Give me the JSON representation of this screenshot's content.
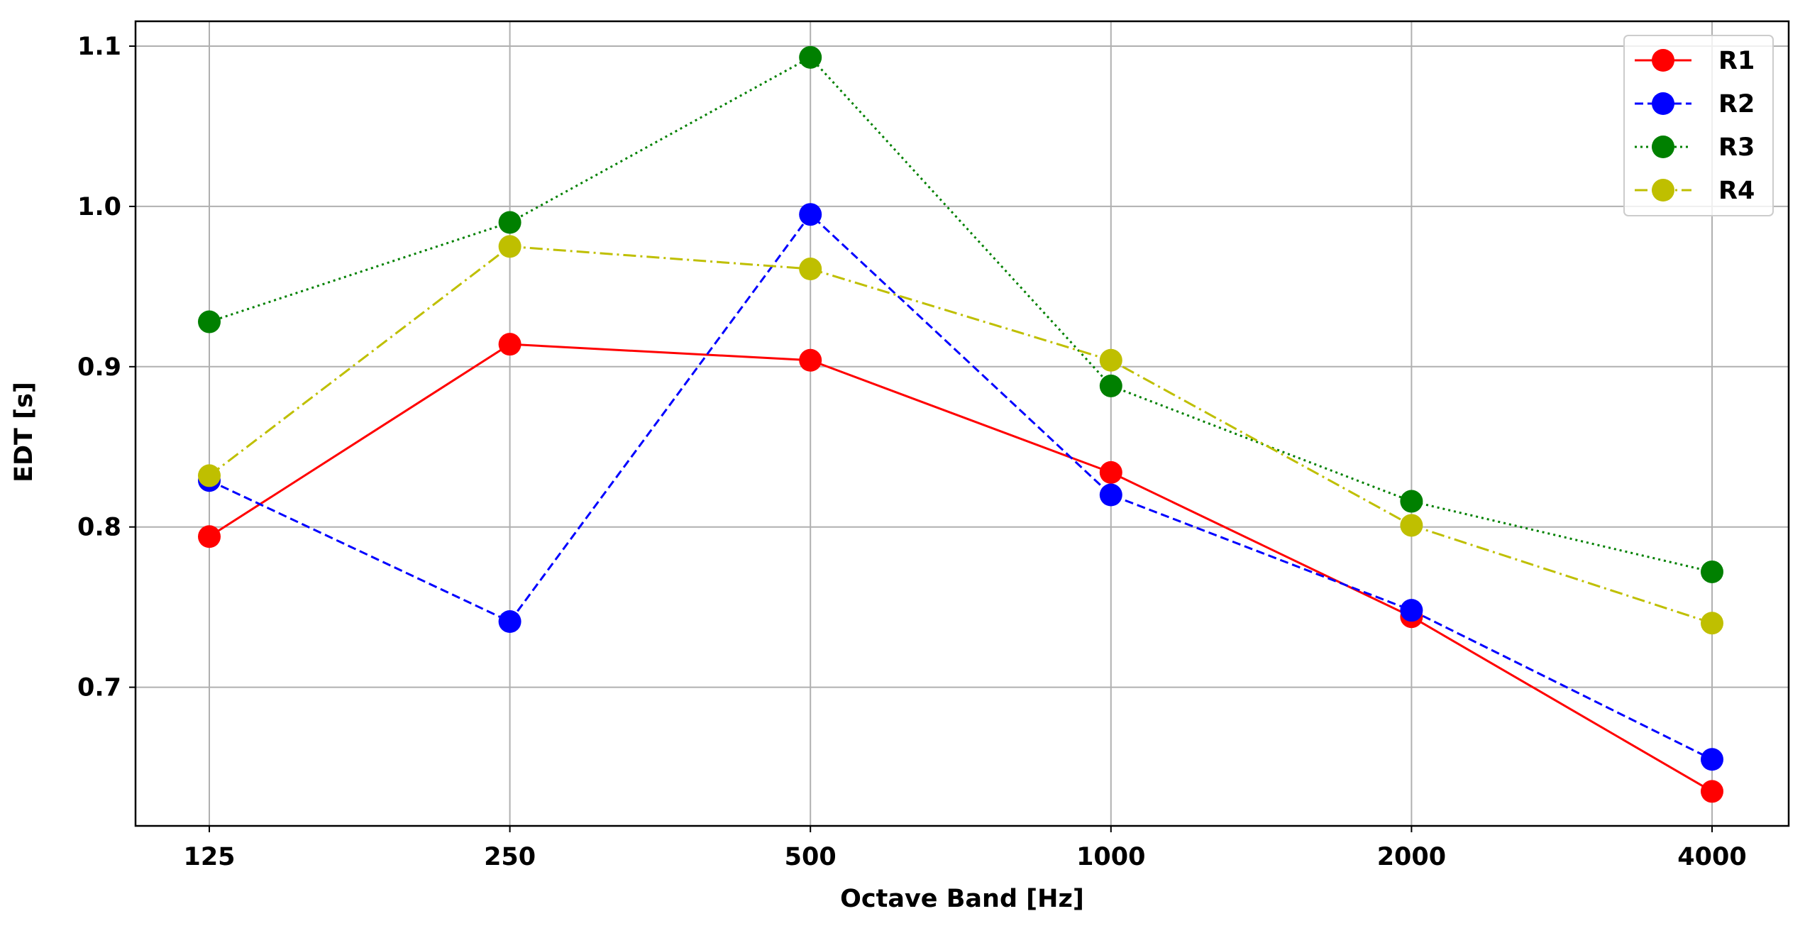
{
  "chart_data": {
    "type": "line",
    "title": "",
    "xlabel": "Octave Band [Hz]",
    "ylabel": "EDT [s]",
    "categories": [
      "125",
      "250",
      "500",
      "1000",
      "2000",
      "4000"
    ],
    "y_ticks": [
      0.7,
      0.8,
      0.9,
      1.0,
      1.1
    ],
    "y_tick_labels": [
      "0.7",
      "0.8",
      "0.9",
      "1.0",
      "1.1"
    ],
    "ylim": [
      0.6135,
      1.1155
    ],
    "grid": true,
    "legend_position": "top-right",
    "series": [
      {
        "name": "R1",
        "color": "#ff0000",
        "line_style": "solid",
        "values": [
          0.794,
          0.914,
          0.904,
          0.834,
          0.744,
          0.635
        ]
      },
      {
        "name": "R2",
        "color": "#0000ff",
        "line_style": "dashed",
        "values": [
          0.829,
          0.741,
          0.995,
          0.82,
          0.748,
          0.655
        ]
      },
      {
        "name": "R3",
        "color": "#008000",
        "line_style": "dotted",
        "values": [
          0.928,
          0.99,
          1.093,
          0.888,
          0.816,
          0.772
        ]
      },
      {
        "name": "R4",
        "color": "#bfbf00",
        "line_style": "dashdot",
        "values": [
          0.832,
          0.975,
          0.961,
          0.904,
          0.801,
          0.74
        ]
      }
    ]
  }
}
